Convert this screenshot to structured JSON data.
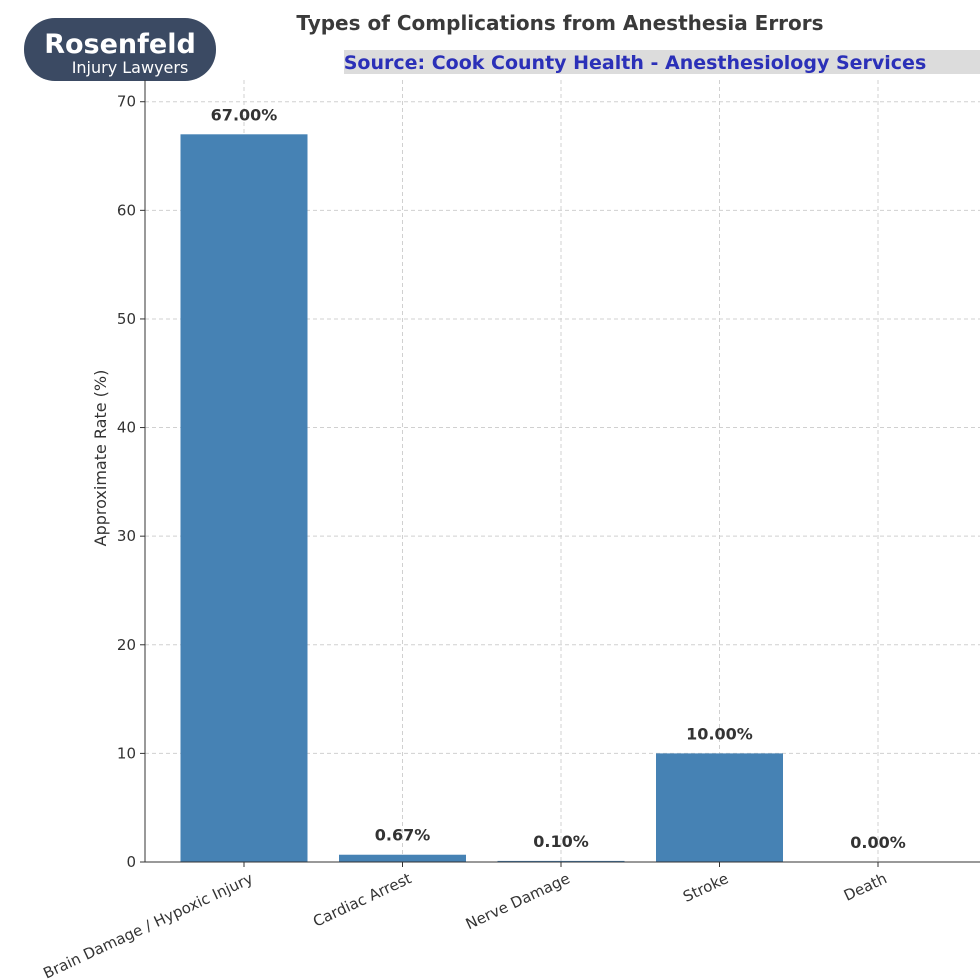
{
  "logo": {
    "name": "Rosenfeld",
    "tagline": "Injury Lawyers"
  },
  "chart_data": {
    "type": "bar",
    "title": "Types of Complications from Anesthesia Errors",
    "subtitle": "Source: Cook County Health - Anesthesiology Services",
    "xlabel": "",
    "ylabel": "Approximate Rate (%)",
    "categories": [
      "Brain Damage / Hypoxic Injury",
      "Cardiac Arrest",
      "Nerve Damage",
      "Stroke",
      "Death"
    ],
    "values": [
      67.0,
      0.67,
      0.1,
      10.0,
      0.0
    ],
    "data_labels": [
      "67.00%",
      "0.67%",
      "0.10%",
      "10.00%",
      "0.00%"
    ],
    "yticks": [
      0,
      10,
      20,
      30,
      40,
      50,
      60,
      70
    ],
    "ylim": [
      0,
      72
    ],
    "grid": true,
    "legend": "none",
    "bar_color": "#4682b4"
  },
  "colors": {
    "logo_bg": "#3b4a63",
    "source_bg": "#dcdcdc",
    "source_text": "#2b30b8"
  }
}
